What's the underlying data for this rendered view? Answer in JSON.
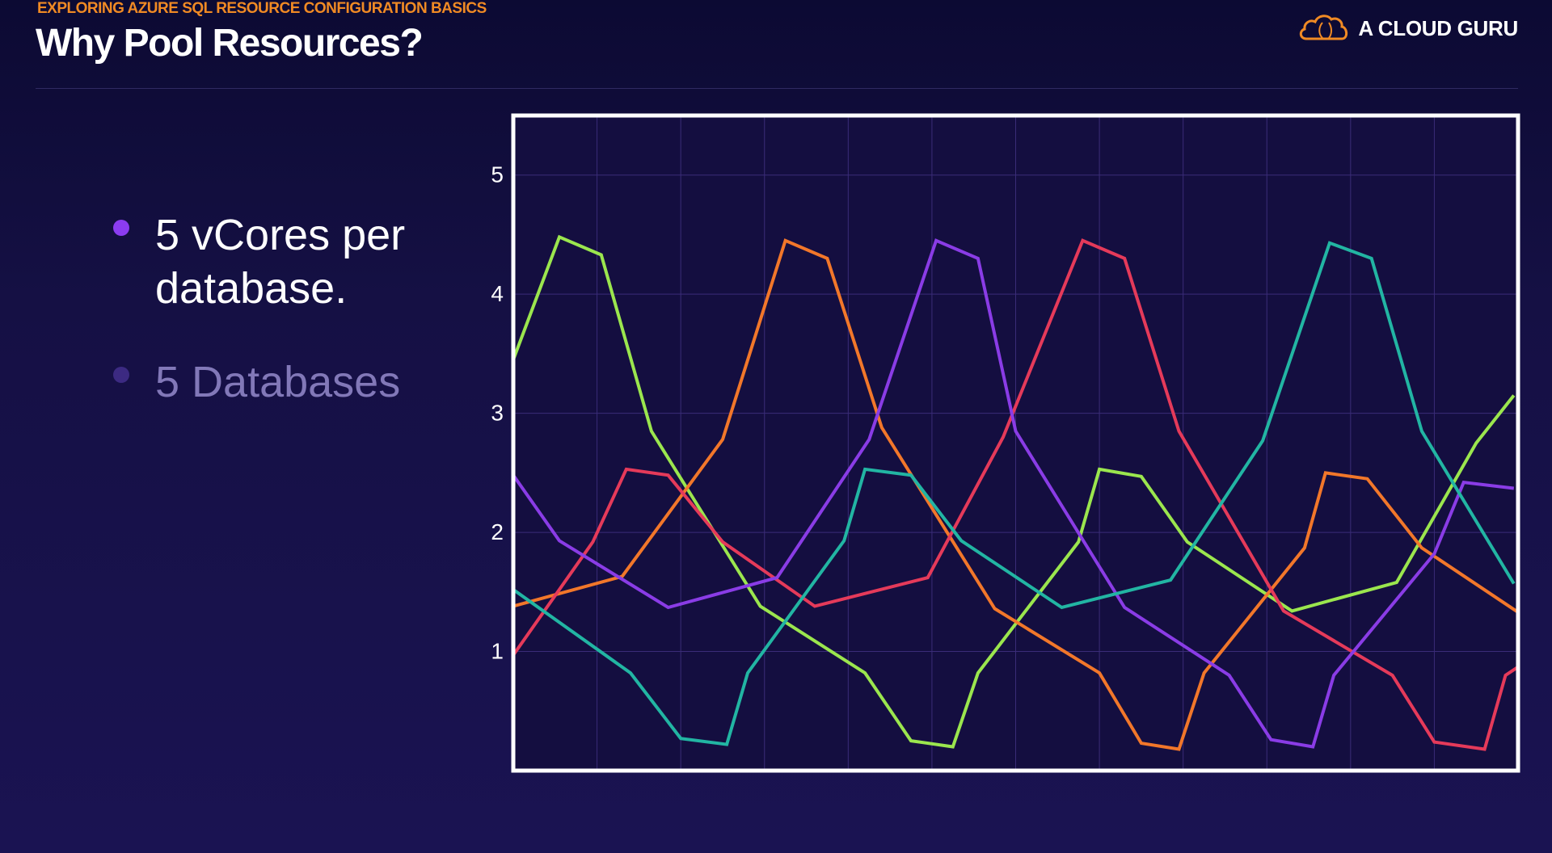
{
  "header": {
    "kicker": "EXPLORING AZURE SQL RESOURCE CONFIGURATION BASICS",
    "title": "Why Pool Resources?",
    "logo_text": "A CLOUD GURU",
    "logo_icon": "cloud-icon"
  },
  "colors": {
    "accent_orange": "#f08a24",
    "bullet_active": "#8b3cf0",
    "bullet_dim": "#3c2a82",
    "text_dim": "#8278b8"
  },
  "bullets": [
    {
      "text_line1": "5 vCores per",
      "text_line2": "database.",
      "state": "active"
    },
    {
      "text_line1": "5 Databases",
      "state": "dim"
    }
  ],
  "chart_data": {
    "type": "line",
    "title": "",
    "xlabel": "",
    "ylabel": "",
    "xlim": [
      0,
      12
    ],
    "ylim": [
      0,
      5.5
    ],
    "y_ticks": [
      1,
      2,
      3,
      4,
      5
    ],
    "grid": true,
    "legend": "none",
    "series": [
      {
        "color": "#9be64e",
        "points": [
          [
            0.0,
            3.45
          ],
          [
            0.55,
            4.48
          ],
          [
            1.05,
            4.33
          ],
          [
            1.65,
            2.85
          ],
          [
            2.95,
            1.38
          ],
          [
            4.2,
            0.82
          ],
          [
            4.75,
            0.25
          ],
          [
            5.25,
            0.2
          ],
          [
            5.55,
            0.82
          ],
          [
            6.75,
            1.92
          ],
          [
            7.0,
            2.53
          ],
          [
            7.5,
            2.47
          ],
          [
            8.05,
            1.92
          ],
          [
            9.3,
            1.34
          ],
          [
            10.55,
            1.58
          ],
          [
            11.5,
            2.75
          ],
          [
            11.95,
            3.15
          ]
        ]
      },
      {
        "color": "#f2772a",
        "points": [
          [
            0.0,
            1.38
          ],
          [
            1.3,
            1.63
          ],
          [
            2.5,
            2.78
          ],
          [
            3.25,
            4.45
          ],
          [
            3.75,
            4.3
          ],
          [
            4.4,
            2.88
          ],
          [
            5.75,
            1.36
          ],
          [
            7.0,
            0.82
          ],
          [
            7.5,
            0.23
          ],
          [
            7.95,
            0.18
          ],
          [
            8.25,
            0.82
          ],
          [
            9.45,
            1.87
          ],
          [
            9.7,
            2.5
          ],
          [
            10.2,
            2.45
          ],
          [
            10.85,
            1.87
          ],
          [
            12.0,
            1.33
          ]
        ]
      },
      {
        "color": "#e53a5a",
        "points": [
          [
            0.0,
            0.97
          ],
          [
            0.95,
            1.92
          ],
          [
            1.35,
            2.53
          ],
          [
            1.85,
            2.48
          ],
          [
            2.5,
            1.92
          ],
          [
            3.6,
            1.38
          ],
          [
            4.95,
            1.62
          ],
          [
            5.85,
            2.8
          ],
          [
            6.8,
            4.45
          ],
          [
            7.3,
            4.3
          ],
          [
            7.95,
            2.85
          ],
          [
            9.2,
            1.34
          ],
          [
            10.5,
            0.8
          ],
          [
            11.0,
            0.24
          ],
          [
            11.6,
            0.18
          ],
          [
            11.85,
            0.8
          ],
          [
            12.0,
            0.87
          ]
        ]
      },
      {
        "color": "#8a3ce6",
        "points": [
          [
            0.0,
            2.48
          ],
          [
            0.55,
            1.93
          ],
          [
            1.85,
            1.37
          ],
          [
            3.15,
            1.62
          ],
          [
            4.25,
            2.78
          ],
          [
            5.05,
            4.45
          ],
          [
            5.55,
            4.3
          ],
          [
            6.0,
            2.85
          ],
          [
            7.3,
            1.37
          ],
          [
            8.55,
            0.8
          ],
          [
            9.05,
            0.26
          ],
          [
            9.55,
            0.2
          ],
          [
            9.8,
            0.8
          ],
          [
            11.0,
            1.82
          ],
          [
            11.35,
            2.42
          ],
          [
            11.95,
            2.37
          ]
        ]
      },
      {
        "color": "#22b5a3",
        "points": [
          [
            0.0,
            1.52
          ],
          [
            1.4,
            0.82
          ],
          [
            2.0,
            0.27
          ],
          [
            2.55,
            0.22
          ],
          [
            2.8,
            0.82
          ],
          [
            3.95,
            1.93
          ],
          [
            4.2,
            2.53
          ],
          [
            4.75,
            2.48
          ],
          [
            5.35,
            1.93
          ],
          [
            6.55,
            1.37
          ],
          [
            7.85,
            1.6
          ],
          [
            8.95,
            2.77
          ],
          [
            9.75,
            4.43
          ],
          [
            10.25,
            4.3
          ],
          [
            10.85,
            2.85
          ],
          [
            11.95,
            1.57
          ]
        ]
      }
    ]
  }
}
